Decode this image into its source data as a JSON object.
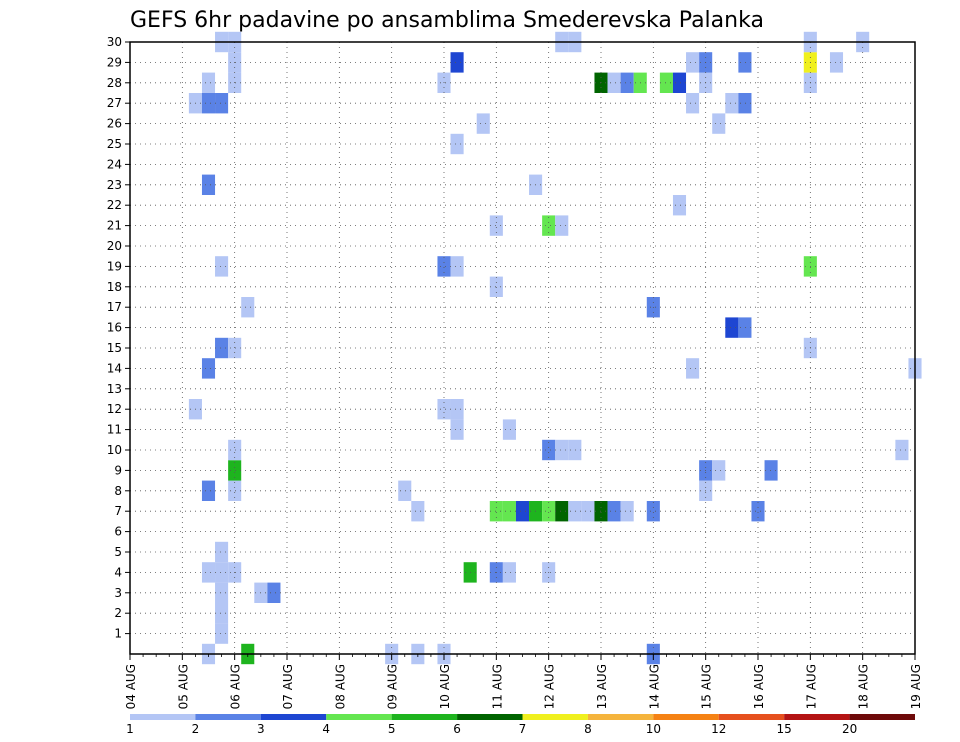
{
  "chart_data": {
    "type": "heatmap",
    "title": "GEFS 6hr padavine po ansamblima Smederevska Palanka",
    "xlabel": "",
    "ylabel": "",
    "x_ticks": [
      "04 AUG",
      "05 AUG",
      "06 AUG",
      "07 AUG",
      "08 AUG",
      "09 AUG",
      "10 AUG",
      "11 AUG",
      "12 AUG",
      "13 AUG",
      "14 AUG",
      "15 AUG",
      "16 AUG",
      "17 AUG",
      "18 AUG",
      "19 AUG"
    ],
    "xlim_days": [
      0,
      15
    ],
    "y_ticks": [
      1,
      2,
      3,
      4,
      5,
      6,
      7,
      8,
      9,
      10,
      11,
      12,
      13,
      14,
      15,
      16,
      17,
      18,
      19,
      20,
      21,
      22,
      23,
      24,
      25,
      26,
      27,
      28,
      29,
      30
    ],
    "ylim": [
      0,
      30
    ],
    "grid": true,
    "colorbar": {
      "labels": [
        "1",
        "2",
        "3",
        "4",
        "5",
        "6",
        "7",
        "8",
        "10",
        "12",
        "15",
        "20"
      ],
      "colors": [
        "#b4c6f5",
        "#5a82e6",
        "#1e46d2",
        "#64e650",
        "#1eb41e",
        "#006400",
        "#f0f01e",
        "#f5b43c",
        "#f58214",
        "#e6501e",
        "#b41414",
        "#6e0a0a"
      ]
    },
    "cells": [
      {
        "day": 1.5,
        "member": 0,
        "bin": 1
      },
      {
        "day": 2.25,
        "member": 0,
        "bin": 5
      },
      {
        "day": 5.0,
        "member": 0,
        "bin": 1
      },
      {
        "day": 5.5,
        "member": 0,
        "bin": 1
      },
      {
        "day": 6.0,
        "member": 0,
        "bin": 1
      },
      {
        "day": 10.0,
        "member": 0,
        "bin": 2
      },
      {
        "day": 1.75,
        "member": 1,
        "bin": 1
      },
      {
        "day": 1.75,
        "member": 2,
        "bin": 1
      },
      {
        "day": 1.75,
        "member": 3,
        "bin": 1
      },
      {
        "day": 2.5,
        "member": 3,
        "bin": 1
      },
      {
        "day": 2.75,
        "member": 3,
        "bin": 2
      },
      {
        "day": 1.5,
        "member": 4,
        "bin": 1
      },
      {
        "day": 1.75,
        "member": 4,
        "bin": 1
      },
      {
        "day": 2.0,
        "member": 4,
        "bin": 1
      },
      {
        "day": 6.5,
        "member": 4,
        "bin": 5
      },
      {
        "day": 7.0,
        "member": 4,
        "bin": 2
      },
      {
        "day": 7.25,
        "member": 4,
        "bin": 1
      },
      {
        "day": 8.0,
        "member": 4,
        "bin": 1
      },
      {
        "day": 1.75,
        "member": 5,
        "bin": 1
      },
      {
        "day": 5.5,
        "member": 7,
        "bin": 1
      },
      {
        "day": 7.0,
        "member": 7,
        "bin": 4
      },
      {
        "day": 7.25,
        "member": 7,
        "bin": 4
      },
      {
        "day": 7.5,
        "member": 7,
        "bin": 3
      },
      {
        "day": 7.75,
        "member": 7,
        "bin": 5
      },
      {
        "day": 8.0,
        "member": 7,
        "bin": 4
      },
      {
        "day": 8.25,
        "member": 7,
        "bin": 6
      },
      {
        "day": 8.5,
        "member": 7,
        "bin": 1
      },
      {
        "day": 8.75,
        "member": 7,
        "bin": 1
      },
      {
        "day": 9.0,
        "member": 7,
        "bin": 6
      },
      {
        "day": 9.25,
        "member": 7,
        "bin": 2
      },
      {
        "day": 9.5,
        "member": 7,
        "bin": 1
      },
      {
        "day": 10.0,
        "member": 7,
        "bin": 2
      },
      {
        "day": 12.0,
        "member": 7,
        "bin": 2
      },
      {
        "day": 1.5,
        "member": 8,
        "bin": 2
      },
      {
        "day": 2.0,
        "member": 8,
        "bin": 1
      },
      {
        "day": 5.25,
        "member": 8,
        "bin": 1
      },
      {
        "day": 11.0,
        "member": 8,
        "bin": 1
      },
      {
        "day": 2.0,
        "member": 9,
        "bin": 5
      },
      {
        "day": 11.0,
        "member": 9,
        "bin": 2
      },
      {
        "day": 11.25,
        "member": 9,
        "bin": 1
      },
      {
        "day": 12.25,
        "member": 9,
        "bin": 2
      },
      {
        "day": 2.0,
        "member": 10,
        "bin": 1
      },
      {
        "day": 8.0,
        "member": 10,
        "bin": 2
      },
      {
        "day": 8.25,
        "member": 10,
        "bin": 1
      },
      {
        "day": 8.5,
        "member": 10,
        "bin": 1
      },
      {
        "day": 14.75,
        "member": 10,
        "bin": 1
      },
      {
        "day": 6.25,
        "member": 11,
        "bin": 1
      },
      {
        "day": 7.25,
        "member": 11,
        "bin": 1
      },
      {
        "day": 1.25,
        "member": 12,
        "bin": 1
      },
      {
        "day": 6.0,
        "member": 12,
        "bin": 1
      },
      {
        "day": 6.25,
        "member": 12,
        "bin": 1
      },
      {
        "day": 1.5,
        "member": 14,
        "bin": 2
      },
      {
        "day": 10.75,
        "member": 14,
        "bin": 1
      },
      {
        "day": 15.0,
        "member": 14,
        "bin": 1
      },
      {
        "day": 1.75,
        "member": 15,
        "bin": 2
      },
      {
        "day": 2.0,
        "member": 15,
        "bin": 1
      },
      {
        "day": 13.0,
        "member": 15,
        "bin": 1
      },
      {
        "day": 11.5,
        "member": 16,
        "bin": 3
      },
      {
        "day": 11.75,
        "member": 16,
        "bin": 2
      },
      {
        "day": 2.25,
        "member": 17,
        "bin": 1
      },
      {
        "day": 10.0,
        "member": 17,
        "bin": 2
      },
      {
        "day": 7.0,
        "member": 18,
        "bin": 1
      },
      {
        "day": 1.75,
        "member": 19,
        "bin": 1
      },
      {
        "day": 6.0,
        "member": 19,
        "bin": 2
      },
      {
        "day": 6.25,
        "member": 19,
        "bin": 1
      },
      {
        "day": 13.0,
        "member": 19,
        "bin": 4
      },
      {
        "day": 8.0,
        "member": 21,
        "bin": 4
      },
      {
        "day": 8.25,
        "member": 21,
        "bin": 1
      },
      {
        "day": 7.0,
        "member": 21,
        "bin": 1
      },
      {
        "day": 10.5,
        "member": 22,
        "bin": 1
      },
      {
        "day": 1.5,
        "member": 23,
        "bin": 2
      },
      {
        "day": 7.75,
        "member": 23,
        "bin": 1
      },
      {
        "day": 6.25,
        "member": 25,
        "bin": 1
      },
      {
        "day": 6.75,
        "member": 26,
        "bin": 1
      },
      {
        "day": 11.25,
        "member": 26,
        "bin": 1
      },
      {
        "day": 1.25,
        "member": 27,
        "bin": 1
      },
      {
        "day": 1.5,
        "member": 27,
        "bin": 2
      },
      {
        "day": 1.75,
        "member": 27,
        "bin": 2
      },
      {
        "day": 10.75,
        "member": 27,
        "bin": 1
      },
      {
        "day": 11.5,
        "member": 27,
        "bin": 1
      },
      {
        "day": 11.75,
        "member": 27,
        "bin": 2
      },
      {
        "day": 1.5,
        "member": 28,
        "bin": 1
      },
      {
        "day": 2.0,
        "member": 28,
        "bin": 1
      },
      {
        "day": 6.0,
        "member": 28,
        "bin": 1
      },
      {
        "day": 9.0,
        "member": 28,
        "bin": 6
      },
      {
        "day": 9.25,
        "member": 28,
        "bin": 1
      },
      {
        "day": 9.5,
        "member": 28,
        "bin": 2
      },
      {
        "day": 9.75,
        "member": 28,
        "bin": 4
      },
      {
        "day": 10.25,
        "member": 28,
        "bin": 4
      },
      {
        "day": 10.5,
        "member": 28,
        "bin": 3
      },
      {
        "day": 11.0,
        "member": 28,
        "bin": 1
      },
      {
        "day": 13.0,
        "member": 28,
        "bin": 1
      },
      {
        "day": 2.0,
        "member": 29,
        "bin": 1
      },
      {
        "day": 6.25,
        "member": 29,
        "bin": 3
      },
      {
        "day": 10.75,
        "member": 29,
        "bin": 1
      },
      {
        "day": 11.0,
        "member": 29,
        "bin": 2
      },
      {
        "day": 11.75,
        "member": 29,
        "bin": 2
      },
      {
        "day": 13.0,
        "member": 29,
        "bin": 7
      },
      {
        "day": 13.5,
        "member": 29,
        "bin": 1
      },
      {
        "day": 1.75,
        "member": 30,
        "bin": 1
      },
      {
        "day": 2.0,
        "member": 30,
        "bin": 1
      },
      {
        "day": 8.25,
        "member": 30,
        "bin": 1
      },
      {
        "day": 8.5,
        "member": 30,
        "bin": 1
      },
      {
        "day": 13.0,
        "member": 30,
        "bin": 1
      },
      {
        "day": 14.0,
        "member": 30,
        "bin": 1
      }
    ]
  }
}
